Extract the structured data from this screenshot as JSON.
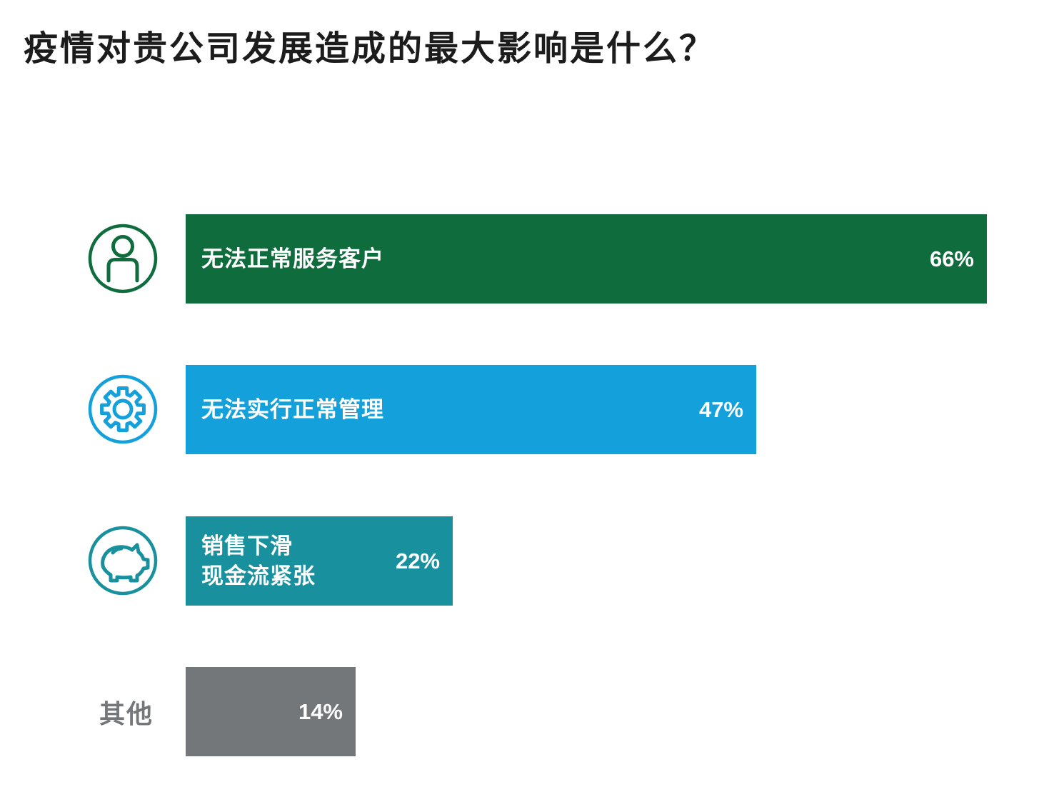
{
  "title": "疫情对贵公司发展造成的最大影响是什么？",
  "colors": {
    "title_text": "#1c1c1c",
    "bar_text": "#ffffff",
    "outside_label_text": "#75787b"
  },
  "chart_data": {
    "type": "bar",
    "orientation": "horizontal",
    "title": "疫情对贵公司发展造成的最大影响是什么？",
    "unit": "%",
    "xlim": [
      0,
      100
    ],
    "grid": false,
    "legend": false,
    "categories": [
      "无法正常服务客户",
      "无法实行正常管理",
      "销售下滑 现金流紧张",
      "其他"
    ],
    "values": [
      66,
      47,
      22,
      14
    ],
    "bars": [
      {
        "label": "无法正常服务客户",
        "value": 66,
        "value_label": "66%",
        "color": "#0e6c3d",
        "icon": "person-icon",
        "label_position": "inside"
      },
      {
        "label": "无法实行正常管理",
        "value": 47,
        "value_label": "47%",
        "color": "#14a0da",
        "icon": "gear-icon",
        "label_position": "inside"
      },
      {
        "label": "销售下滑 现金流紧张",
        "label_lines": [
          "销售下滑",
          "现金流紧张"
        ],
        "value": 22,
        "value_label": "22%",
        "color": "#19909e",
        "icon": "piggy-bank-icon",
        "label_position": "inside"
      },
      {
        "label": "其他",
        "value": 14,
        "value_label": "14%",
        "color": "#747779",
        "icon": null,
        "label_position": "outside"
      }
    ]
  }
}
